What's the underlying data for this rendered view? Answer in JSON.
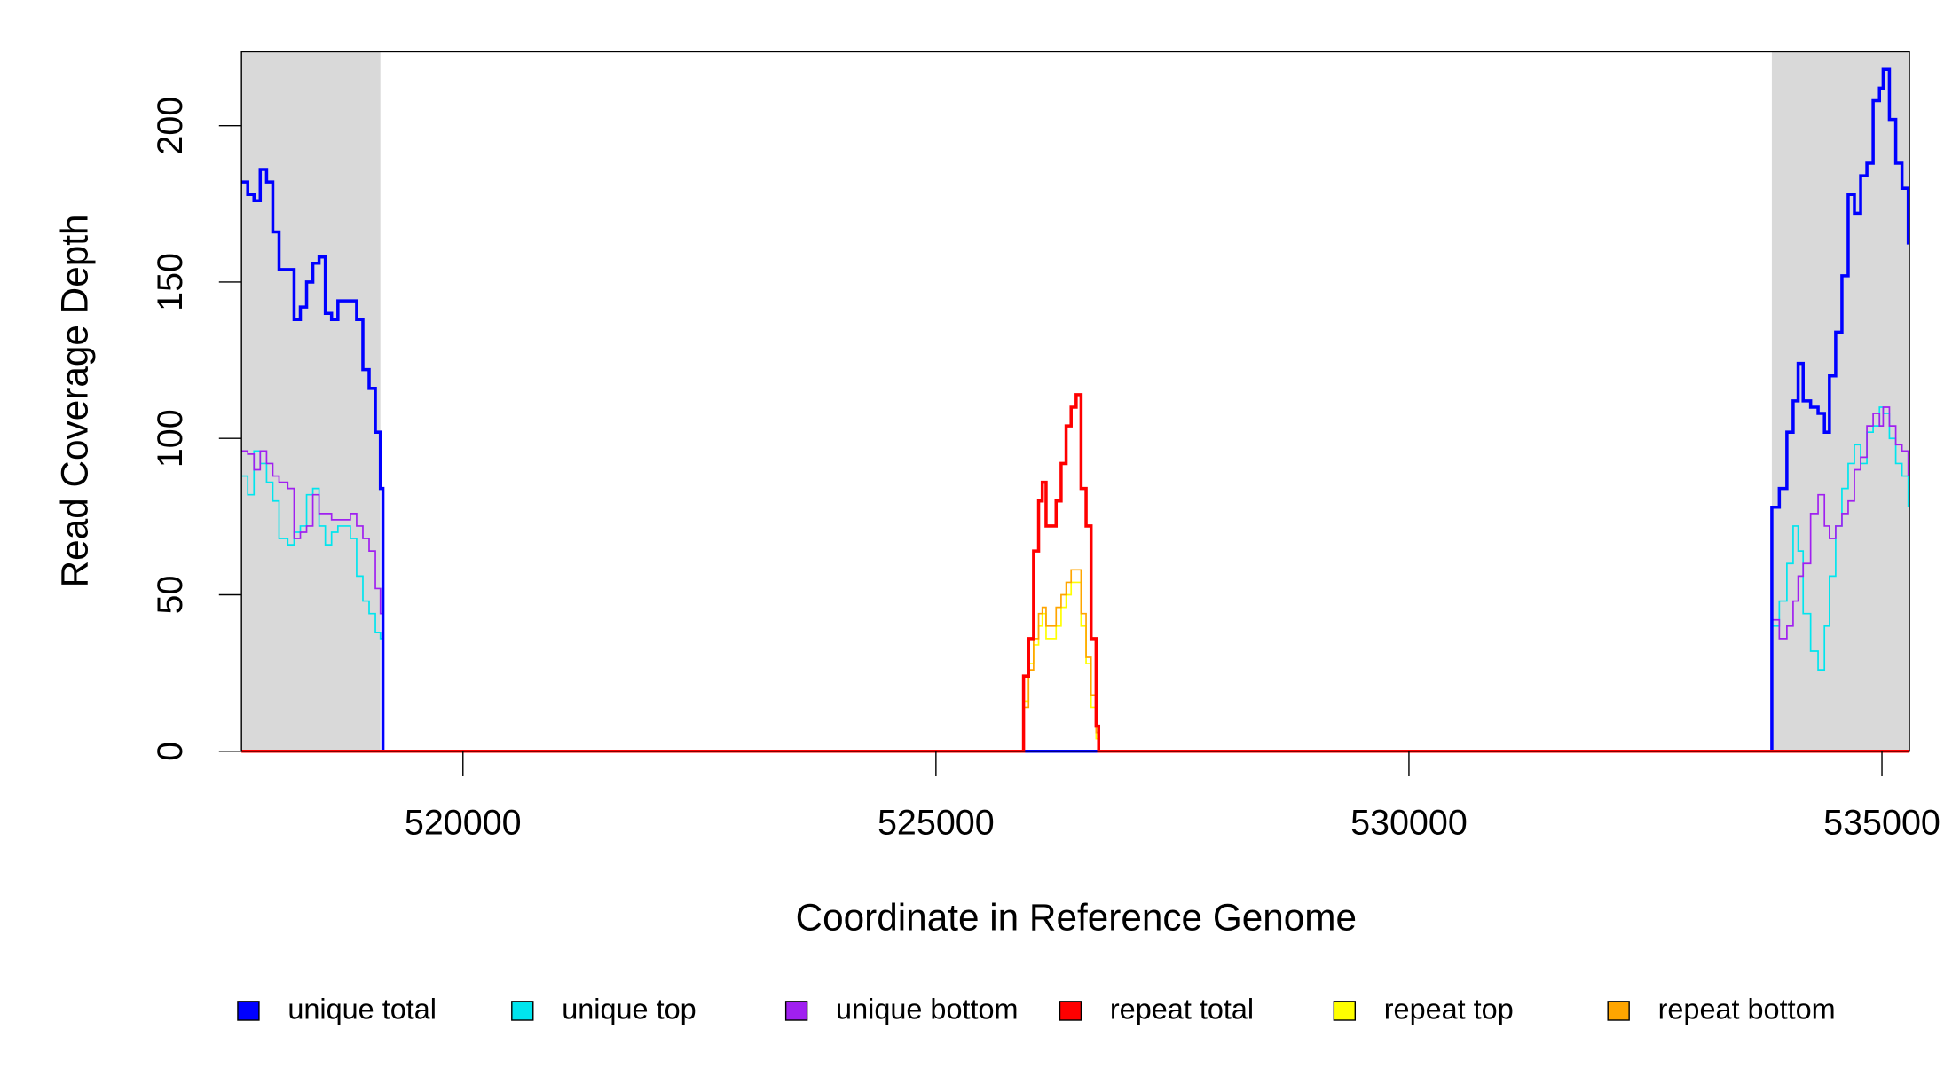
{
  "chart_data": {
    "type": "line",
    "step": true,
    "x_label": "Coordinate in Reference Genome",
    "y_label": "Read Coverage Depth",
    "xlim": [
      517659,
      535291
    ],
    "ylim": [
      0,
      223.6
    ],
    "xticks": [
      520000,
      525000,
      530000,
      535000
    ],
    "yticks": [
      0,
      50,
      100,
      150,
      200
    ],
    "shaded_regions": [
      [
        517659,
        519127
      ],
      [
        533836,
        535291
      ]
    ],
    "shade_color": "#d9d9d9",
    "series": [
      {
        "name": "unique top",
        "color": "#00e5ee",
        "width": 1.2,
        "x": [
          517659,
          517725,
          517791,
          517857,
          517924,
          517990,
          518056,
          518148,
          518215,
          518281,
          518347,
          518413,
          518479,
          518545,
          518611,
          518678,
          518810,
          518876,
          518942,
          519008,
          519074,
          519127,
          519154,
          533836,
          533915,
          533995,
          534061,
          534114,
          534167,
          534246,
          534325,
          534392,
          534445,
          534511,
          534577,
          534643,
          534709,
          534775,
          534841,
          534907,
          534974,
          535013,
          535079,
          535146,
          535212,
          535278
        ],
        "values": [
          88,
          82,
          96,
          92,
          86,
          80,
          68,
          66,
          70,
          72,
          82,
          84,
          72,
          66,
          70,
          72,
          68,
          56,
          48,
          44,
          38,
          36,
          0,
          40,
          48,
          60,
          72,
          64,
          44,
          32,
          26,
          40,
          56,
          72,
          84,
          92,
          98,
          92,
          102,
          104,
          110,
          108,
          100,
          92,
          88,
          78
        ]
      },
      {
        "name": "unique bottom",
        "color": "#a020f0",
        "width": 1.2,
        "x": [
          517659,
          517725,
          517791,
          517857,
          517924,
          517990,
          518056,
          518148,
          518215,
          518281,
          518347,
          518413,
          518479,
          518545,
          518611,
          518678,
          518810,
          518876,
          518942,
          519008,
          519074,
          519127,
          519154,
          533836,
          533915,
          533995,
          534061,
          534114,
          534167,
          534246,
          534325,
          534392,
          534445,
          534511,
          534577,
          534643,
          534709,
          534775,
          534841,
          534907,
          534974,
          535013,
          535079,
          535146,
          535212,
          535278
        ],
        "values": [
          96,
          95,
          90,
          96,
          92,
          88,
          86,
          84,
          68,
          70,
          72,
          82,
          76,
          76,
          74,
          74,
          76,
          72,
          68,
          64,
          52,
          44,
          0,
          42,
          36,
          40,
          48,
          56,
          60,
          76,
          82,
          72,
          68,
          72,
          76,
          80,
          90,
          94,
          104,
          108,
          104,
          110,
          104,
          98,
          96,
          88
        ]
      },
      {
        "name": "unique total",
        "color": "#0000ff",
        "width": 2.5,
        "x": [
          517659,
          517725,
          517791,
          517857,
          517924,
          517990,
          518056,
          518148,
          518215,
          518281,
          518347,
          518413,
          518479,
          518545,
          518611,
          518678,
          518810,
          518876,
          518942,
          519008,
          519074,
          519127,
          519154,
          533836,
          533915,
          533995,
          534061,
          534114,
          534167,
          534246,
          534325,
          534392,
          534445,
          534511,
          534577,
          534643,
          534709,
          534775,
          534841,
          534907,
          534974,
          535013,
          535079,
          535146,
          535212,
          535278
        ],
        "values": [
          182,
          178,
          176,
          186,
          182,
          166,
          154,
          154,
          138,
          142,
          150,
          156,
          158,
          140,
          138,
          144,
          144,
          138,
          122,
          116,
          102,
          84,
          0,
          78,
          84,
          102,
          112,
          124,
          112,
          110,
          108,
          102,
          120,
          134,
          152,
          178,
          172,
          184,
          188,
          208,
          212,
          218,
          202,
          188,
          180,
          162
        ]
      },
      {
        "name": "repeat top",
        "color": "#ffff00",
        "width": 1.2,
        "x": [
          517659,
          525899,
          525926,
          525979,
          526032,
          526085,
          526124,
          526164,
          526217,
          526270,
          526323,
          526376,
          526429,
          526482,
          526534,
          526587,
          526640,
          526693,
          526720,
          535291
        ],
        "values": [
          0,
          0,
          16,
          28,
          34,
          40,
          44,
          36,
          36,
          40,
          46,
          50,
          54,
          54,
          40,
          28,
          14,
          4,
          0,
          0
        ]
      },
      {
        "name": "repeat bottom",
        "color": "#ffa500",
        "width": 1.2,
        "x": [
          517659,
          525899,
          525926,
          525979,
          526032,
          526085,
          526124,
          526164,
          526217,
          526270,
          526323,
          526376,
          526429,
          526482,
          526534,
          526587,
          526640,
          526693,
          526720,
          535291
        ],
        "values": [
          0,
          0,
          14,
          26,
          36,
          44,
          46,
          40,
          40,
          46,
          50,
          54,
          58,
          58,
          44,
          30,
          18,
          6,
          0,
          0
        ]
      },
      {
        "name": "repeat total",
        "color": "#ff0000",
        "width": 2.5,
        "x": [
          517659,
          525899,
          525926,
          525979,
          526032,
          526085,
          526124,
          526164,
          526217,
          526270,
          526323,
          526376,
          526429,
          526482,
          526534,
          526587,
          526640,
          526693,
          526720,
          535291
        ],
        "values": [
          0,
          0,
          24,
          36,
          64,
          80,
          86,
          72,
          72,
          80,
          92,
          104,
          110,
          114,
          84,
          72,
          36,
          8,
          0,
          0
        ]
      }
    ],
    "legend_order": [
      2,
      0,
      1,
      5,
      3,
      4
    ]
  }
}
